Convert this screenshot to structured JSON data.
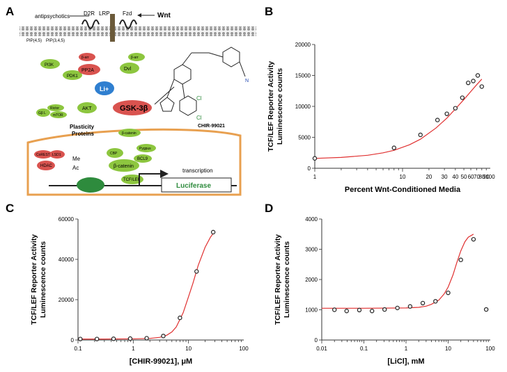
{
  "panels": {
    "A": {
      "label": "A",
      "labels": {
        "antipsychotics": "antipsychotics",
        "d2r": "D2R",
        "lrp": "LRP",
        "fzd": "Fzd",
        "wnt": "Wnt",
        "pip2": "PIP(4,5)",
        "pip3": "PIP(3,4,5)",
        "pp2a": "PP2A",
        "barr": "β-arr",
        "dvl": "Dvl",
        "pi3k": "PI3K",
        "pdk1": "PDK1",
        "li": "Li+",
        "rictor": "Rictor",
        "gbl": "Gβ L",
        "mtor": "mTOR",
        "akt": "AKT",
        "gsk": "GSK-3β",
        "plasticity": "Plasticity",
        "proteins": "Proteins",
        "bcatenin": "β-catenin",
        "corest": "CoREST",
        "lsd1": "LSD1",
        "hdac": "HDAC",
        "me": "Me",
        "ac": "Ac",
        "cbp": "CBP",
        "pygpus": "Pygpus",
        "bcl9": "BCL9",
        "tcf": "TCF/LEF",
        "transcription": "transcription",
        "luciferase": "Luciferase",
        "chir": "CHIR-99021"
      }
    },
    "B": {
      "label": "B"
    },
    "C": {
      "label": "C"
    },
    "D": {
      "label": "D"
    }
  },
  "colors": {
    "curve": "#e03030",
    "marker": "#222222",
    "error": "#e03030"
  },
  "chart_data": [
    {
      "panel": "B",
      "type": "scatter",
      "xscale": "log",
      "xlim": [
        1,
        100
      ],
      "ylim": [
        0,
        20000
      ],
      "xticks": [
        1,
        10,
        20,
        30,
        40,
        50,
        60,
        70,
        80,
        90,
        100
      ],
      "xtick_labels": [
        "1",
        "10",
        "20",
        "30",
        "40",
        "50",
        "60",
        "70",
        "80",
        "90",
        "100"
      ],
      "yticks": [
        0,
        5000,
        10000,
        15000,
        20000
      ],
      "ytick_labels": [
        "0",
        "5000",
        "10000",
        "15000",
        "20000"
      ],
      "xlabel": "Percent Wnt-Conditioned Media",
      "ylabel": [
        "TCF/LEF Reporter Activity",
        "Luminescence counts"
      ],
      "x": [
        1,
        8,
        16,
        25,
        32,
        40,
        48,
        56,
        64,
        72,
        80
      ],
      "y": [
        1600,
        3300,
        5400,
        7800,
        8800,
        9700,
        11400,
        13800,
        14100,
        15000,
        13200
      ],
      "fit_x": [
        1,
        2,
        4,
        6,
        8,
        12,
        16,
        24,
        32,
        40,
        50,
        60,
        70,
        80
      ],
      "fit_y": [
        1600,
        1750,
        2100,
        2500,
        2900,
        3800,
        4700,
        6500,
        8100,
        9600,
        11100,
        12400,
        13500,
        14400
      ]
    },
    {
      "panel": "C",
      "type": "scatter",
      "xscale": "log",
      "xlim": [
        0.1,
        100
      ],
      "ylim": [
        0,
        60000
      ],
      "xticks": [
        0.1,
        1,
        10,
        100
      ],
      "xtick_labels": [
        "0.1",
        "1",
        "10",
        "100"
      ],
      "yticks": [
        0,
        20000,
        40000,
        60000
      ],
      "ytick_labels": [
        "0",
        "20000",
        "40000",
        "60000"
      ],
      "xlabel": "[CHIR-99021], μM",
      "ylabel": [
        "TCF/LEF Reporter Activity",
        "Luminescence counts"
      ],
      "x": [
        0.11,
        0.22,
        0.44,
        0.88,
        1.75,
        3.5,
        7,
        14,
        28
      ],
      "y": [
        500,
        500,
        600,
        700,
        900,
        2000,
        11000,
        34000,
        53500
      ],
      "fit_x": [
        0.1,
        0.3,
        1,
        2,
        3,
        4,
        5,
        6,
        8,
        10,
        12,
        15,
        20,
        25,
        30
      ],
      "fit_y": [
        500,
        500,
        600,
        800,
        1300,
        2300,
        4000,
        6500,
        13500,
        21500,
        28000,
        37000,
        46000,
        51000,
        54000
      ]
    },
    {
      "panel": "D",
      "type": "scatter",
      "xscale": "log",
      "xlim": [
        0.01,
        100
      ],
      "ylim": [
        0,
        4000
      ],
      "xticks": [
        0.01,
        0.1,
        1,
        10,
        100
      ],
      "xtick_labels": [
        "0.01",
        "0.1",
        "1",
        "10",
        "100"
      ],
      "yticks": [
        0,
        1000,
        2000,
        3000,
        4000
      ],
      "ytick_labels": [
        "0",
        "1000",
        "2000",
        "3000",
        "4000"
      ],
      "xlabel": "[LiCl], mM",
      "ylabel": [
        "TCF/LEF Reporter Activity",
        "Luminescence counts"
      ],
      "x": [
        0.02,
        0.039,
        0.078,
        0.156,
        0.31,
        0.625,
        1.25,
        2.5,
        5,
        10,
        20,
        40,
        80
      ],
      "y": [
        1000,
        960,
        990,
        960,
        1010,
        1060,
        1110,
        1220,
        1280,
        1560,
        2650,
        3330,
        1010
      ],
      "fit_x": [
        0.01,
        0.1,
        1,
        2,
        3,
        4,
        6,
        8,
        10,
        13,
        16,
        20,
        25,
        30,
        40
      ],
      "fit_y": [
        1050,
        1050,
        1060,
        1080,
        1120,
        1180,
        1320,
        1520,
        1750,
        2150,
        2550,
        2950,
        3250,
        3400,
        3500
      ]
    }
  ]
}
